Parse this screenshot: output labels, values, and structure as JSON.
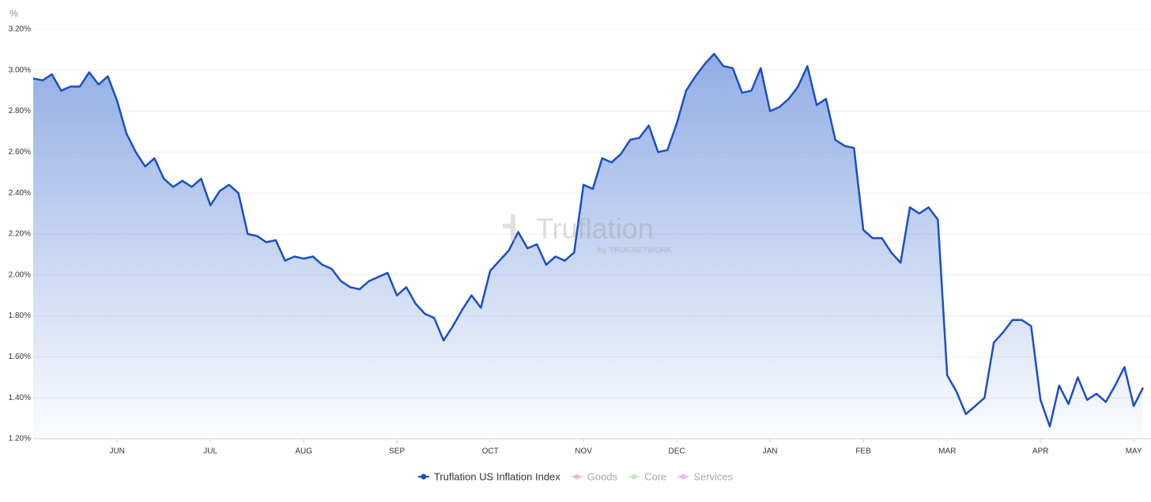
{
  "chart_data": {
    "type": "area",
    "y_label": "%",
    "watermark": {
      "name": "Truflation",
      "sub": "by TRUF.NETWORK"
    },
    "ylim": [
      1.2,
      3.2
    ],
    "yticks": [
      {
        "value": 1.2,
        "label": "1.20%"
      },
      {
        "value": 1.4,
        "label": "1.40%"
      },
      {
        "value": 1.6,
        "label": "1.60%"
      },
      {
        "value": 1.8,
        "label": "1.80%"
      },
      {
        "value": 2.0,
        "label": "2.00%"
      },
      {
        "value": 2.2,
        "label": "2.20%"
      },
      {
        "value": 2.4,
        "label": "2.40%"
      },
      {
        "value": 2.6,
        "label": "2.60%"
      },
      {
        "value": 2.8,
        "label": "2.80%"
      },
      {
        "value": 3.0,
        "label": "3.00%"
      },
      {
        "value": 3.2,
        "label": "3.20%"
      }
    ],
    "grid": true,
    "categories": [
      null,
      null,
      null,
      null,
      null,
      null,
      null,
      null,
      null,
      "JUN",
      null,
      null,
      null,
      null,
      null,
      null,
      null,
      null,
      null,
      "JUL",
      null,
      null,
      null,
      null,
      null,
      null,
      null,
      null,
      null,
      "AUG",
      null,
      null,
      null,
      null,
      null,
      null,
      null,
      null,
      null,
      "SEP",
      null,
      null,
      null,
      null,
      null,
      null,
      null,
      null,
      null,
      "OCT",
      null,
      null,
      null,
      null,
      null,
      null,
      null,
      null,
      null,
      "NOV",
      null,
      null,
      null,
      null,
      null,
      null,
      null,
      null,
      null,
      "DEC",
      null,
      null,
      null,
      null,
      null,
      null,
      null,
      null,
      null,
      "JAN",
      null,
      null,
      null,
      null,
      null,
      null,
      null,
      null,
      null,
      "FEB",
      null,
      null,
      null,
      null,
      null,
      null,
      null,
      null,
      "MAR",
      null,
      null,
      null,
      null,
      null,
      null,
      null,
      null,
      null,
      "APR",
      null,
      null,
      null,
      null,
      null,
      null,
      null,
      null,
      null,
      "MAY",
      null
    ],
    "series": [
      {
        "name": "Truflation US Inflation Index",
        "color": "#1a4fc4",
        "visible": true,
        "values": [
          2.96,
          2.95,
          2.98,
          2.9,
          2.92,
          2.92,
          2.99,
          2.93,
          2.97,
          2.85,
          2.69,
          2.6,
          2.53,
          2.57,
          2.47,
          2.43,
          2.46,
          2.43,
          2.47,
          2.34,
          2.41,
          2.44,
          2.4,
          2.2,
          2.19,
          2.16,
          2.17,
          2.07,
          2.09,
          2.08,
          2.09,
          2.05,
          2.03,
          1.97,
          1.94,
          1.93,
          1.97,
          1.99,
          2.01,
          1.9,
          1.94,
          1.86,
          1.81,
          1.79,
          1.68,
          1.75,
          1.83,
          1.9,
          1.84,
          2.02,
          2.07,
          2.12,
          2.21,
          2.13,
          2.15,
          2.05,
          2.09,
          2.07,
          2.11,
          2.44,
          2.42,
          2.57,
          2.55,
          2.59,
          2.66,
          2.67,
          2.73,
          2.6,
          2.61,
          2.74,
          2.9,
          2.97,
          3.03,
          3.08,
          3.02,
          3.01,
          2.89,
          2.9,
          3.01,
          2.8,
          2.82,
          2.86,
          2.92,
          3.02,
          2.83,
          2.86,
          2.66,
          2.63,
          2.62,
          2.22,
          2.18,
          2.18,
          2.11,
          2.06,
          2.33,
          2.3,
          2.33,
          2.27,
          1.51,
          1.43,
          1.32,
          1.36,
          1.4,
          1.67,
          1.72,
          1.78,
          1.78,
          1.75,
          1.39,
          1.26,
          1.46,
          1.37,
          1.5,
          1.39,
          1.42,
          1.38,
          1.46,
          1.55,
          1.36,
          1.45
        ]
      },
      {
        "name": "Goods",
        "color": "#eeaaaa",
        "visible": false
      },
      {
        "name": "Core",
        "color": "#aee3b2",
        "visible": false
      },
      {
        "name": "Services",
        "color": "#e4a8ea",
        "visible": false
      }
    ]
  }
}
